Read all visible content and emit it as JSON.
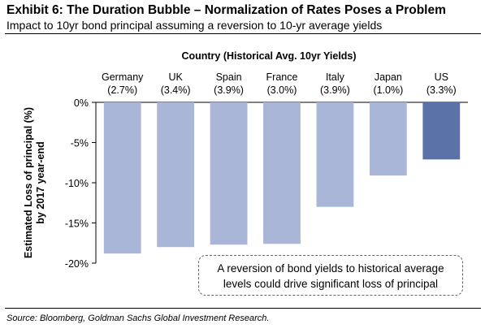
{
  "header": {
    "title": "Exhibit 6: The Duration Bubble – Normalization of Rates Poses a Problem",
    "subtitle": "Impact to 10yr bond principal assuming a reversion to 10-yr average yields"
  },
  "source": "Source: Bloomberg, Goldman Sachs Global Investment Research.",
  "callout": {
    "line1": "A reversion of bond yields to historical average",
    "line2": "levels could drive significant loss of principal"
  },
  "chart_data": {
    "type": "bar",
    "title": "Country (Historical Avg. 10yr Yields)",
    "xlabel": "",
    "ylabel": "Estimated Loss of principal (%) by 2017 year-end",
    "ylabel_lines": [
      "Estimated Loss of principal (%)",
      "by 2017 year-end"
    ],
    "categories": [
      "Germany",
      "UK",
      "Spain",
      "France",
      "Italy",
      "Japan",
      "US"
    ],
    "category_yields": [
      "(2.7%)",
      "(3.4%)",
      "(3.9%)",
      "(3.0%)",
      "(3.9%)",
      "(1.0%)",
      "(3.3%)"
    ],
    "values": [
      -18.8,
      -18.0,
      -17.7,
      -17.6,
      -13.0,
      -9.1,
      -7.1
    ],
    "ylim": [
      -20,
      0
    ],
    "yticks": [
      0,
      -5,
      -10,
      -15,
      -20
    ],
    "ytick_labels": [
      "0%",
      "-5%",
      "-10%",
      "-15%",
      "-20%"
    ],
    "bar_colors": [
      "#a9b6d8",
      "#a9b6d8",
      "#a9b6d8",
      "#a9b6d8",
      "#a9b6d8",
      "#a9b6d8",
      "#5a72a8"
    ],
    "grid": false,
    "category_axis_position": "top"
  }
}
